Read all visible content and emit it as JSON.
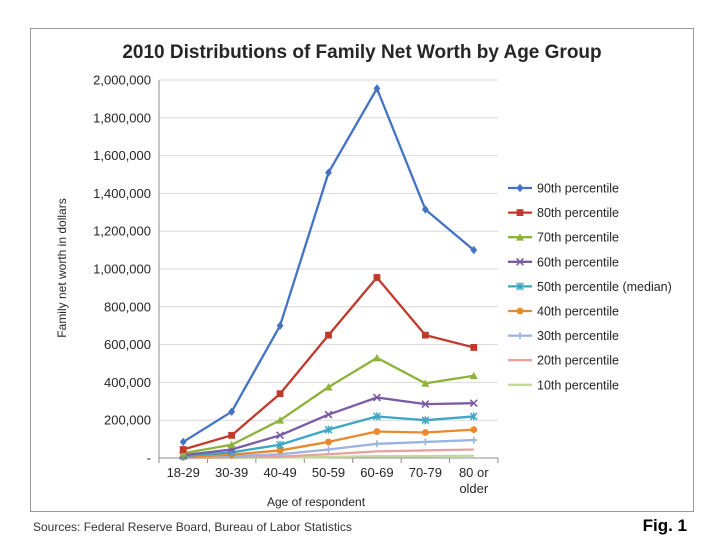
{
  "chart_data": {
    "type": "line",
    "title": "2010 Distributions of Family Net Worth by Age Group",
    "xlabel": "Age of respondent",
    "ylabel": "Family net worth in dollars",
    "categories": [
      "18-29",
      "30-39",
      "40-49",
      "50-59",
      "60-69",
      "70-79",
      "80 or older"
    ],
    "yticks": [
      "-",
      "200,000",
      "400,000",
      "600,000",
      "800,000",
      "1,000,000",
      "1,200,000",
      "1,400,000",
      "1,600,000",
      "1,800,000",
      "2,000,000"
    ],
    "ylim": [
      0,
      2000000
    ],
    "grid": true,
    "legend_position": "right",
    "series": [
      {
        "name": "90th percentile",
        "color": "#4472C4",
        "marker": "diamond",
        "values": [
          85000,
          245000,
          700000,
          1510000,
          1955000,
          1315000,
          1100000
        ]
      },
      {
        "name": "80th percentile",
        "color": "#C0392B",
        "marker": "square",
        "values": [
          45000,
          120000,
          340000,
          650000,
          955000,
          650000,
          585000
        ]
      },
      {
        "name": "70th percentile",
        "color": "#8DB33A",
        "marker": "triangle",
        "values": [
          25000,
          70000,
          200000,
          375000,
          530000,
          395000,
          435000
        ]
      },
      {
        "name": "60th percentile",
        "color": "#7B5AA6",
        "marker": "x",
        "values": [
          15000,
          45000,
          120000,
          230000,
          320000,
          285000,
          290000
        ]
      },
      {
        "name": "50th percentile (median)",
        "color": "#3EA6C4",
        "marker": "star",
        "values": [
          10000,
          30000,
          70000,
          150000,
          220000,
          200000,
          220000
        ]
      },
      {
        "name": "40th percentile",
        "color": "#E8892E",
        "marker": "circle",
        "values": [
          5000,
          18000,
          40000,
          85000,
          140000,
          135000,
          150000
        ]
      },
      {
        "name": "30th percentile",
        "color": "#9BB3E0",
        "marker": "plus",
        "values": [
          3000,
          10000,
          20000,
          45000,
          75000,
          85000,
          95000
        ]
      },
      {
        "name": "20th percentile",
        "color": "#E8A0A0",
        "marker": "none",
        "values": [
          1000,
          4000,
          8000,
          20000,
          35000,
          40000,
          45000
        ]
      },
      {
        "name": "10th percentile",
        "color": "#C4D79B",
        "marker": "none",
        "values": [
          0,
          1000,
          2000,
          5000,
          10000,
          10000,
          12000
        ]
      }
    ]
  },
  "footer": {
    "sources": "Sources:  Federal Reserve Board, Bureau of Labor Statistics",
    "fig": "Fig. 1"
  }
}
